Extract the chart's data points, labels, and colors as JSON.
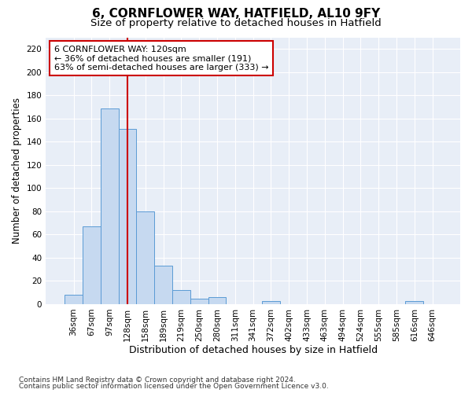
{
  "title1": "6, CORNFLOWER WAY, HATFIELD, AL10 9FY",
  "title2": "Size of property relative to detached houses in Hatfield",
  "xlabel": "Distribution of detached houses by size in Hatfield",
  "ylabel": "Number of detached properties",
  "categories": [
    "36sqm",
    "67sqm",
    "97sqm",
    "128sqm",
    "158sqm",
    "189sqm",
    "219sqm",
    "250sqm",
    "280sqm",
    "311sqm",
    "341sqm",
    "372sqm",
    "402sqm",
    "433sqm",
    "463sqm",
    "494sqm",
    "524sqm",
    "555sqm",
    "585sqm",
    "616sqm",
    "646sqm"
  ],
  "bar_values": [
    8,
    67,
    169,
    151,
    80,
    33,
    12,
    5,
    6,
    0,
    0,
    3,
    0,
    0,
    0,
    0,
    0,
    0,
    0,
    3,
    0
  ],
  "bar_color": "#c6d9f0",
  "bar_edge_color": "#5b9bd5",
  "vline_x": 3,
  "vline_color": "#cc0000",
  "annotation_line1": "6 CORNFLOWER WAY: 120sqm",
  "annotation_line2": "← 36% of detached houses are smaller (191)",
  "annotation_line3": "63% of semi-detached houses are larger (333) →",
  "annotation_box_color": "#ffffff",
  "annotation_box_edge": "#cc0000",
  "ylim_max": 230,
  "yticks": [
    0,
    20,
    40,
    60,
    80,
    100,
    120,
    140,
    160,
    180,
    200,
    220
  ],
  "background_color": "#e8eef7",
  "plot_bg_color": "#dce6f5",
  "grid_color": "#ffffff",
  "footer_line1": "Contains HM Land Registry data © Crown copyright and database right 2024.",
  "footer_line2": "Contains public sector information licensed under the Open Government Licence v3.0.",
  "title1_fontsize": 11,
  "title2_fontsize": 9.5,
  "xlabel_fontsize": 9,
  "ylabel_fontsize": 8.5,
  "tick_fontsize": 7.5,
  "footer_fontsize": 6.5,
  "annot_fontsize": 8
}
